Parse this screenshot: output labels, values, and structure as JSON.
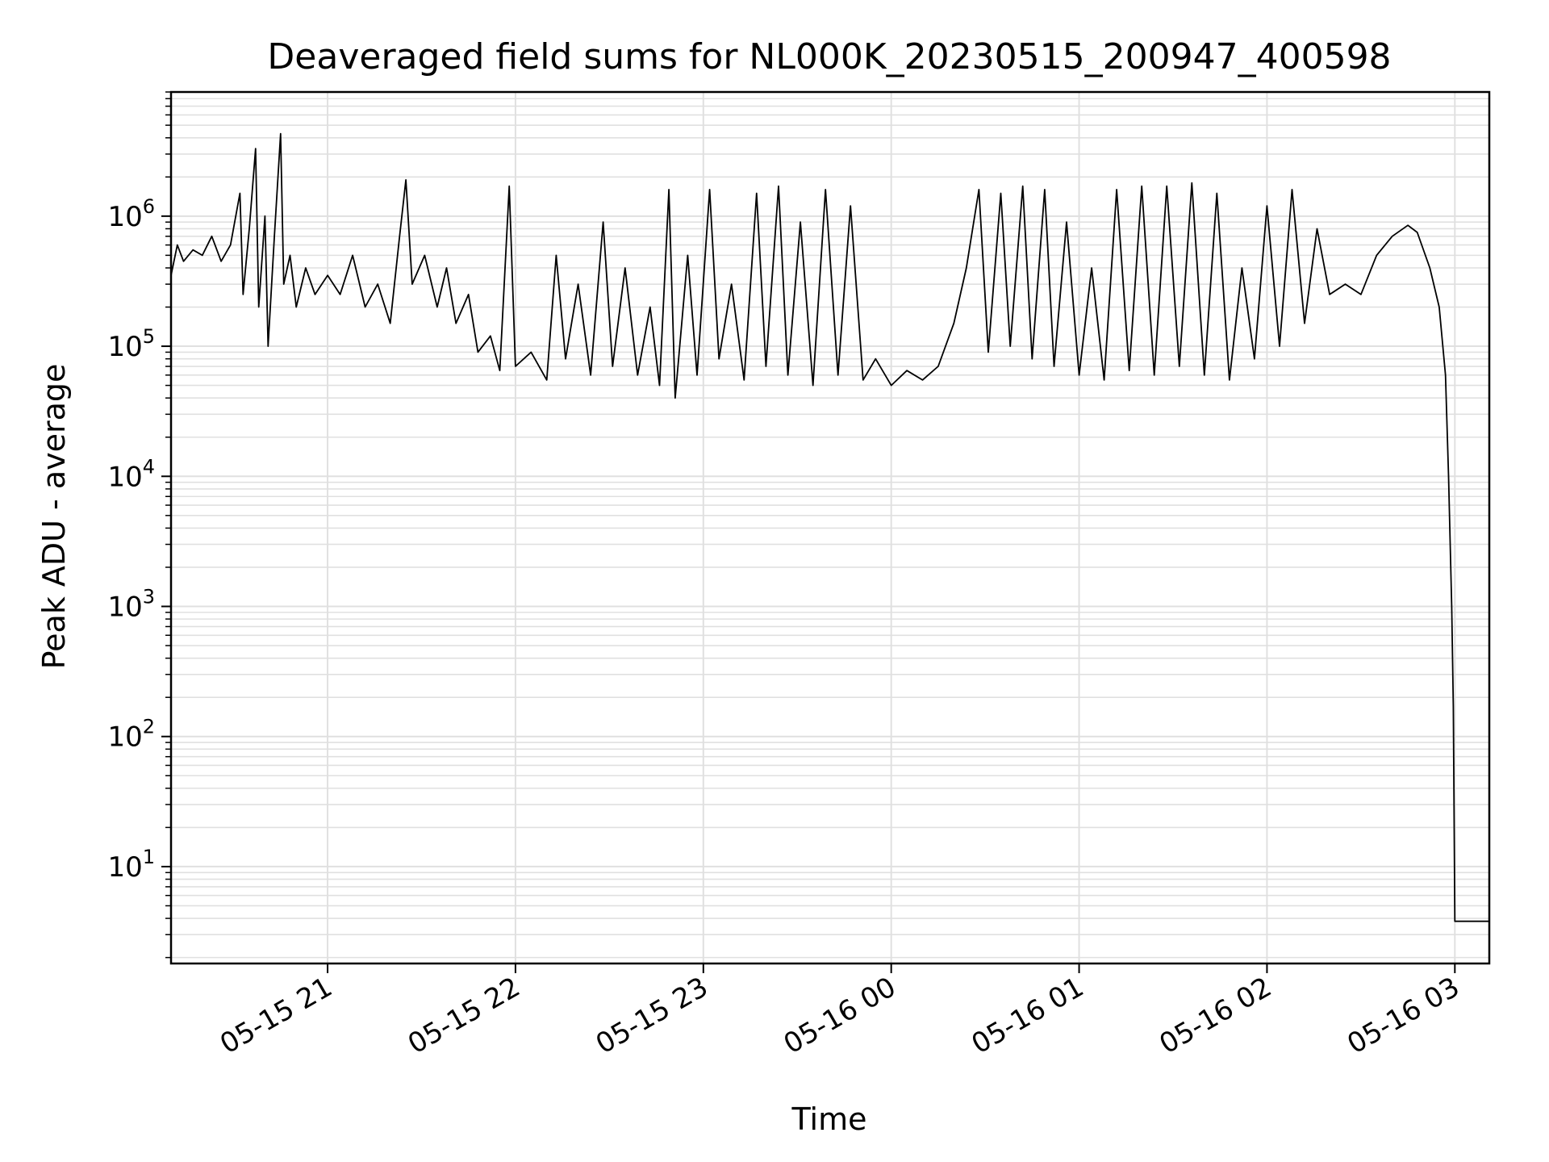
{
  "chart_data": {
    "type": "line",
    "title": "Deaveraged field sums for NL000K_20230515_200947_400598",
    "xlabel": "Time",
    "ylabel": "Peak ADU - average",
    "yscale": "log",
    "ylim": [
      1.8,
      9000000
    ],
    "xlim": [
      "2023-05-15 20:10",
      "2023-05-16 03:11"
    ],
    "grid": true,
    "line_color": "#000000",
    "grid_color": "#e0e0e0",
    "x_ticks": [
      {
        "t": "2023-05-15 21:00",
        "label": "05-15 21"
      },
      {
        "t": "2023-05-15 22:00",
        "label": "05-15 22"
      },
      {
        "t": "2023-05-15 23:00",
        "label": "05-15 23"
      },
      {
        "t": "2023-05-16 00:00",
        "label": "05-16 00"
      },
      {
        "t": "2023-05-16 01:00",
        "label": "05-16 01"
      },
      {
        "t": "2023-05-16 02:00",
        "label": "05-16 02"
      },
      {
        "t": "2023-05-16 03:00",
        "label": "05-16 03"
      }
    ],
    "y_ticks": [
      {
        "value": 10,
        "base": "10",
        "exp": "1"
      },
      {
        "value": 100,
        "base": "10",
        "exp": "2"
      },
      {
        "value": 1000,
        "base": "10",
        "exp": "3"
      },
      {
        "value": 10000,
        "base": "10",
        "exp": "4"
      },
      {
        "value": 100000,
        "base": "10",
        "exp": "5"
      },
      {
        "value": 1000000,
        "base": "10",
        "exp": "6"
      }
    ],
    "series": [
      {
        "points": [
          [
            "2023-05-15 20:10",
            350000
          ],
          [
            "2023-05-15 20:12",
            600000
          ],
          [
            "2023-05-15 20:14",
            450000
          ],
          [
            "2023-05-15 20:17",
            550000
          ],
          [
            "2023-05-15 20:20",
            500000
          ],
          [
            "2023-05-15 20:23",
            700000
          ],
          [
            "2023-05-15 20:26",
            450000
          ],
          [
            "2023-05-15 20:29",
            600000
          ],
          [
            "2023-05-15 20:32",
            1500000
          ],
          [
            "2023-05-15 20:33",
            250000
          ],
          [
            "2023-05-15 20:35",
            800000
          ],
          [
            "2023-05-15 20:37",
            3300000
          ],
          [
            "2023-05-15 20:38",
            200000
          ],
          [
            "2023-05-15 20:40",
            1000000
          ],
          [
            "2023-05-15 20:41",
            100000
          ],
          [
            "2023-05-15 20:43",
            700000
          ],
          [
            "2023-05-15 20:45",
            4300000
          ],
          [
            "2023-05-15 20:46",
            300000
          ],
          [
            "2023-05-15 20:48",
            500000
          ],
          [
            "2023-05-15 20:50",
            200000
          ],
          [
            "2023-05-15 20:53",
            400000
          ],
          [
            "2023-05-15 20:56",
            250000
          ],
          [
            "2023-05-15 21:00",
            350000
          ],
          [
            "2023-05-15 21:04",
            250000
          ],
          [
            "2023-05-15 21:08",
            500000
          ],
          [
            "2023-05-15 21:12",
            200000
          ],
          [
            "2023-05-15 21:16",
            300000
          ],
          [
            "2023-05-15 21:20",
            150000
          ],
          [
            "2023-05-15 21:23",
            700000
          ],
          [
            "2023-05-15 21:25",
            1900000
          ],
          [
            "2023-05-15 21:27",
            300000
          ],
          [
            "2023-05-15 21:31",
            500000
          ],
          [
            "2023-05-15 21:35",
            200000
          ],
          [
            "2023-05-15 21:38",
            400000
          ],
          [
            "2023-05-15 21:41",
            150000
          ],
          [
            "2023-05-15 21:45",
            250000
          ],
          [
            "2023-05-15 21:48",
            90000
          ],
          [
            "2023-05-15 21:52",
            120000
          ],
          [
            "2023-05-15 21:55",
            65000
          ],
          [
            "2023-05-15 21:58",
            1700000
          ],
          [
            "2023-05-15 22:00",
            70000
          ],
          [
            "2023-05-15 22:05",
            90000
          ],
          [
            "2023-05-15 22:10",
            55000
          ],
          [
            "2023-05-15 22:13",
            500000
          ],
          [
            "2023-05-15 22:16",
            80000
          ],
          [
            "2023-05-15 22:20",
            300000
          ],
          [
            "2023-05-15 22:24",
            60000
          ],
          [
            "2023-05-15 22:28",
            900000
          ],
          [
            "2023-05-15 22:31",
            70000
          ],
          [
            "2023-05-15 22:35",
            400000
          ],
          [
            "2023-05-15 22:39",
            60000
          ],
          [
            "2023-05-15 22:43",
            200000
          ],
          [
            "2023-05-15 22:46",
            50000
          ],
          [
            "2023-05-15 22:49",
            1600000
          ],
          [
            "2023-05-15 22:51",
            40000
          ],
          [
            "2023-05-15 22:55",
            500000
          ],
          [
            "2023-05-15 22:58",
            60000
          ],
          [
            "2023-05-15 23:02",
            1600000
          ],
          [
            "2023-05-15 23:05",
            80000
          ],
          [
            "2023-05-15 23:09",
            300000
          ],
          [
            "2023-05-15 23:13",
            55000
          ],
          [
            "2023-05-15 23:17",
            1500000
          ],
          [
            "2023-05-15 23:20",
            70000
          ],
          [
            "2023-05-15 23:24",
            1700000
          ],
          [
            "2023-05-15 23:27",
            60000
          ],
          [
            "2023-05-15 23:31",
            900000
          ],
          [
            "2023-05-15 23:35",
            50000
          ],
          [
            "2023-05-15 23:39",
            1600000
          ],
          [
            "2023-05-15 23:43",
            60000
          ],
          [
            "2023-05-15 23:47",
            1200000
          ],
          [
            "2023-05-15 23:51",
            55000
          ],
          [
            "2023-05-15 23:55",
            80000
          ],
          [
            "2023-05-16 00:00",
            50000
          ],
          [
            "2023-05-16 00:05",
            65000
          ],
          [
            "2023-05-16 00:10",
            55000
          ],
          [
            "2023-05-16 00:15",
            70000
          ],
          [
            "2023-05-16 00:20",
            150000
          ],
          [
            "2023-05-16 00:24",
            400000
          ],
          [
            "2023-05-16 00:28",
            1600000
          ],
          [
            "2023-05-16 00:31",
            90000
          ],
          [
            "2023-05-16 00:35",
            1500000
          ],
          [
            "2023-05-16 00:38",
            100000
          ],
          [
            "2023-05-16 00:42",
            1700000
          ],
          [
            "2023-05-16 00:45",
            80000
          ],
          [
            "2023-05-16 00:49",
            1600000
          ],
          [
            "2023-05-16 00:52",
            70000
          ],
          [
            "2023-05-16 00:56",
            900000
          ],
          [
            "2023-05-16 01:00",
            60000
          ],
          [
            "2023-05-16 01:04",
            400000
          ],
          [
            "2023-05-16 01:08",
            55000
          ],
          [
            "2023-05-16 01:12",
            1600000
          ],
          [
            "2023-05-16 01:16",
            65000
          ],
          [
            "2023-05-16 01:20",
            1700000
          ],
          [
            "2023-05-16 01:24",
            60000
          ],
          [
            "2023-05-16 01:28",
            1700000
          ],
          [
            "2023-05-16 01:32",
            70000
          ],
          [
            "2023-05-16 01:36",
            1800000
          ],
          [
            "2023-05-16 01:40",
            60000
          ],
          [
            "2023-05-16 01:44",
            1500000
          ],
          [
            "2023-05-16 01:48",
            55000
          ],
          [
            "2023-05-16 01:52",
            400000
          ],
          [
            "2023-05-16 01:56",
            80000
          ],
          [
            "2023-05-16 02:00",
            1200000
          ],
          [
            "2023-05-16 02:04",
            100000
          ],
          [
            "2023-05-16 02:08",
            1600000
          ],
          [
            "2023-05-16 02:12",
            150000
          ],
          [
            "2023-05-16 02:16",
            800000
          ],
          [
            "2023-05-16 02:20",
            250000
          ],
          [
            "2023-05-16 02:25",
            300000
          ],
          [
            "2023-05-16 02:30",
            250000
          ],
          [
            "2023-05-16 02:35",
            500000
          ],
          [
            "2023-05-16 02:40",
            700000
          ],
          [
            "2023-05-16 02:45",
            850000
          ],
          [
            "2023-05-16 02:48",
            750000
          ],
          [
            "2023-05-16 02:52",
            400000
          ],
          [
            "2023-05-16 02:55",
            200000
          ],
          [
            "2023-05-16 02:57",
            60000
          ],
          [
            "2023-05-16 02:58",
            10000
          ],
          [
            "2023-05-16 02:59",
            1000
          ],
          [
            "2023-05-16 02:59:30",
            170
          ],
          [
            "2023-05-16 03:00",
            3.8
          ],
          [
            "2023-05-16 03:03",
            3.8
          ],
          [
            "2023-05-16 03:06",
            3.8
          ],
          [
            "2023-05-16 03:09",
            3.8
          ],
          [
            "2023-05-16 03:11",
            3.8
          ]
        ]
      }
    ]
  }
}
